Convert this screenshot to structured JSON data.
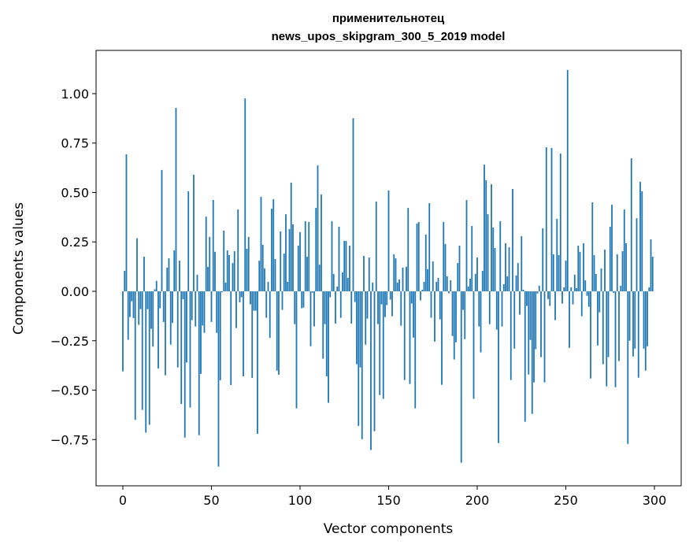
{
  "chart_data": {
    "type": "bar",
    "title": [
      "применительнотец",
      "news_upos_skipgram_300_5_2019 model"
    ],
    "xlabel": "Vector components",
    "ylabel": "Components values",
    "xlim": [
      -15.1,
      315.1
    ],
    "ylim": [
      -0.984,
      1.219
    ],
    "xticks": [
      0,
      50,
      100,
      150,
      200,
      250,
      300
    ],
    "xtick_labels": [
      "0",
      "50",
      "100",
      "150",
      "200",
      "250",
      "300"
    ],
    "yticks": [
      -0.75,
      -0.5,
      -0.25,
      0,
      0.25,
      0.5,
      0.75,
      1.0
    ],
    "ytick_labels": [
      "−0.75",
      "−0.50",
      "−0.25",
      "0.00",
      "0.25",
      "0.50",
      "0.75",
      "1.00"
    ],
    "grid": false,
    "bar_color": "#1f77b4",
    "values": [
      -0.405,
      0.104,
      0.693,
      -0.245,
      -0.13,
      -0.05,
      -0.135,
      -0.65,
      0.268,
      -0.17,
      -0.09,
      -0.6,
      0.175,
      -0.715,
      -0.09,
      -0.675,
      -0.19,
      -0.28,
      0.01,
      0.053,
      -0.39,
      -0.086,
      0.614,
      -0.155,
      -0.425,
      0.12,
      0.167,
      -0.27,
      -0.16,
      0.207,
      0.928,
      -0.385,
      0.155,
      -0.57,
      -0.04,
      -0.74,
      -0.36,
      0.506,
      -0.588,
      -0.146,
      0.59,
      -0.178,
      0.084,
      -0.728,
      -0.418,
      -0.173,
      -0.21,
      0.378,
      0.124,
      0.275,
      -0.155,
      0.462,
      0.2,
      -0.21,
      -0.887,
      -0.45,
      -0.005,
      0.307,
      0.044,
      0.207,
      0.183,
      -0.474,
      0.143,
      0.203,
      -0.186,
      0.414,
      -0.056,
      -0.03,
      -0.43,
      0.976,
      0.215,
      0.275,
      -0.066,
      -0.438,
      -0.098,
      -0.098,
      -0.721,
      0.155,
      0.478,
      0.235,
      0.116,
      -0.134,
      0.048,
      -0.235,
      0.418,
      0.466,
      0.163,
      -0.401,
      -0.422,
      0.303,
      -0.094,
      0.191,
      0.39,
      0.048,
      0.315,
      0.55,
      0.339,
      -0.166,
      -0.592,
      0.231,
      0.299,
      -0.086,
      -0.082,
      0.355,
      0.175,
      0.351,
      -0.278,
      -0.007,
      -0.178,
      0.422,
      0.637,
      0.135,
      0.49,
      -0.341,
      -0.166,
      -0.43,
      -0.564,
      -0.03,
      0.355,
      0.088,
      -0.163,
      0.024,
      0.327,
      -0.134,
      0.096,
      0.255,
      0.255,
      0.068,
      0.231,
      -0.163,
      0.876,
      -0.054,
      -0.369,
      -0.681,
      -0.385,
      -0.748,
      0.179,
      -0.27,
      -0.138,
      0.171,
      -0.803,
      0.044,
      -0.708,
      0.454,
      -0.166,
      -0.525,
      -0.066,
      -0.544,
      -0.13,
      -0.07,
      0.51,
      -0.042,
      -0.126,
      0.187,
      0.167,
      0.044,
      0.06,
      -0.174,
      0.12,
      -0.449,
      0.124,
      0.422,
      -0.469,
      -0.062,
      -0.234,
      -0.592,
      0.343,
      0.351,
      -0.046,
      0.008,
      0.048,
      0.287,
      0.112,
      0.446,
      -0.134,
      0.151,
      -0.254,
      0.048,
      0.068,
      -0.142,
      -0.473,
      0.351,
      0.239,
      0.076,
      -0.01,
      0.056,
      -0.226,
      -0.345,
      -0.258,
      0.143,
      0.231,
      -0.867,
      -0.094,
      -0.242,
      0.462,
      0.024,
      0.064,
      0.331,
      -0.544,
      0.088,
      0.171,
      -0.178,
      -0.309,
      0.104,
      0.641,
      0.562,
      0.39,
      -0.166,
      0.542,
      0.323,
      0.219,
      -0.194,
      -0.768,
      0.355,
      -0.178,
      0.036,
      0.243,
      0.076,
      0.223,
      -0.449,
      0.518,
      -0.29,
      0.08,
      0.143,
      -0.118,
      0.279,
      0.008,
      -0.66,
      -0.074,
      -0.421,
      -0.246,
      -0.62,
      -0.461,
      -0.293,
      -0.011,
      0.028,
      -0.333,
      0.319,
      -0.461,
      0.729,
      -0.039,
      -0.074,
      0.725,
      0.187,
      -0.146,
      0.367,
      0.183,
      0.697,
      -0.062,
      0.02,
      0.155,
      1.12,
      -0.286,
      0.02,
      -0.066,
      0.084,
      0.016,
      0.231,
      0.2,
      -0.126,
      0.243,
      0.056,
      -0.023,
      -0.078,
      -0.441,
      0.45,
      0.183,
      0.088,
      -0.274,
      -0.106,
      0.116,
      -0.369,
      0.211,
      -0.481,
      -0.333,
      0.327,
      0.438,
      -0.008,
      -0.485,
      0.187,
      -0.353,
      0.028,
      0.203,
      0.414,
      0.243,
      -0.772,
      -0.25,
      0.673,
      -0.33,
      -0.29,
      0.37,
      -0.437,
      0.554,
      0.506,
      -0.29,
      -0.401,
      -0.278,
      0.02,
      0.263,
      0.175
    ]
  }
}
